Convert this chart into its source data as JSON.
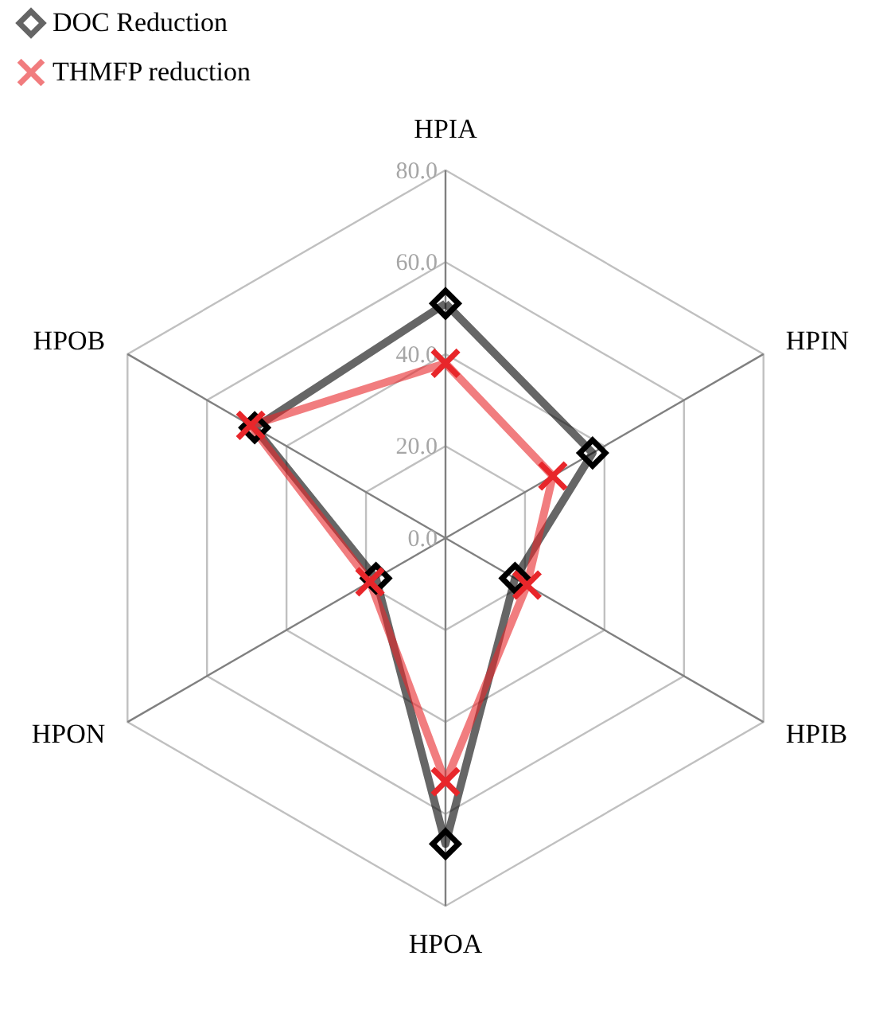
{
  "chart_data": {
    "type": "radar",
    "categories": [
      "HPIA",
      "HPIN",
      "HPIB",
      "HPOA",
      "HPON",
      "HPOB"
    ],
    "series": [
      {
        "name": "DOC Reduction",
        "color": "#000000",
        "marker": "diamond",
        "values": [
          51,
          37,
          17.5,
          66.5,
          17.5,
          48
        ]
      },
      {
        "name": "THMFP reduction",
        "color": "#e8262a",
        "marker": "cross",
        "values": [
          38,
          27,
          20.5,
          53,
          19,
          49
        ]
      }
    ],
    "ylim": [
      0,
      80
    ],
    "yticks": [
      {
        "value": 0,
        "label": "0.0"
      },
      {
        "value": 20,
        "label": "20.0"
      },
      {
        "value": 40,
        "label": "40.0"
      },
      {
        "value": 60,
        "label": "60.0"
      },
      {
        "value": 80,
        "label": "80.0"
      }
    ],
    "grid": true,
    "legend": "top",
    "line_style": "solid"
  }
}
